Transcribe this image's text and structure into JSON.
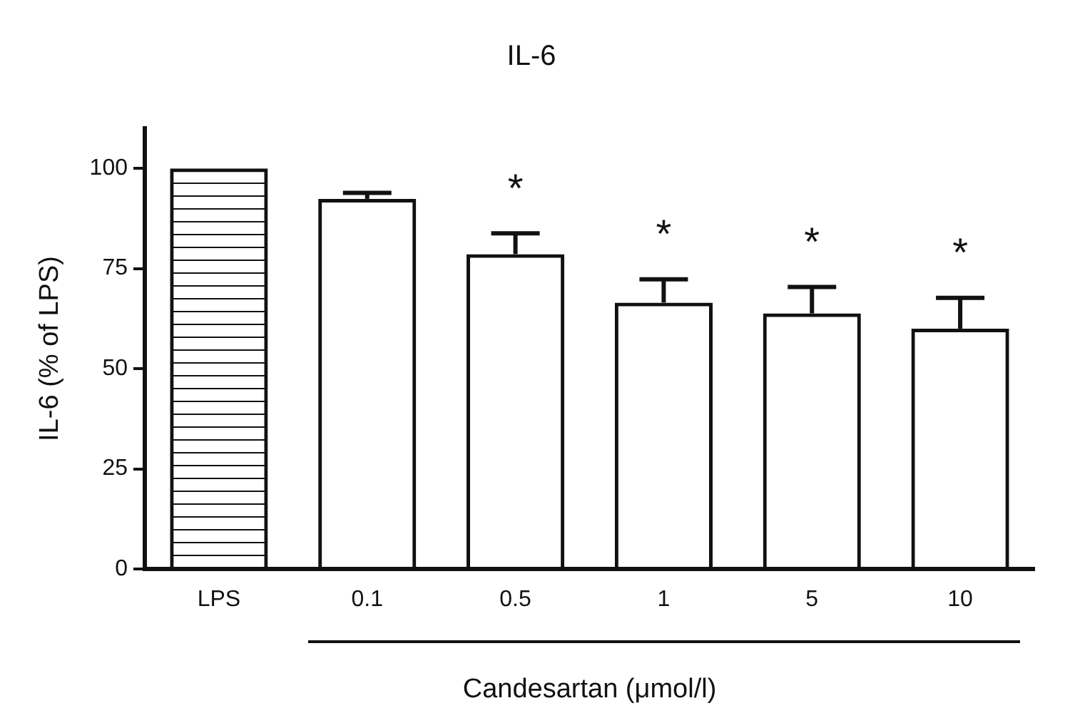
{
  "chart_data": {
    "type": "bar",
    "title": "IL-6",
    "xlabel": "Candesartan (μmol/l)",
    "ylabel": "IL-6 (% of LPS)",
    "categories": [
      "LPS",
      "0.1",
      "0.5",
      "1",
      "5",
      "10"
    ],
    "values": [
      100,
      92.4,
      78.6,
      66.5,
      63.8,
      60.0
    ],
    "colors": [
      "#111111",
      "#111111",
      "#111111",
      "#111111",
      "#111111",
      "#111111"
    ],
    "errors": [
      null,
      [
        92.4,
        93.9
      ],
      [
        78.6,
        83.8
      ],
      [
        66.5,
        72.3
      ],
      [
        63.8,
        70.4
      ],
      [
        60.0,
        67.7
      ]
    ],
    "ylim": [
      0,
      110
    ],
    "yticks": [
      0,
      25,
      50,
      75,
      100
    ],
    "grid": false,
    "legend": false,
    "annotations": [
      "*",
      "*",
      "*",
      "*"
    ]
  }
}
